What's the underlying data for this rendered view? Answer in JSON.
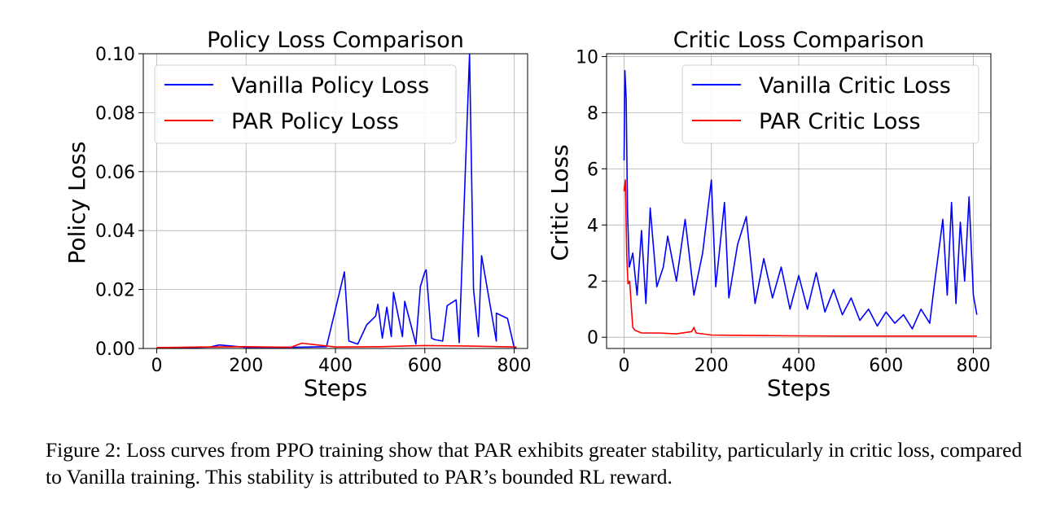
{
  "chart_data": [
    {
      "type": "line",
      "title": "Policy Loss Comparison",
      "xlabel": "Steps",
      "ylabel": "Policy Loss",
      "xlim": [
        -30,
        830
      ],
      "ylim": [
        0,
        0.1
      ],
      "xticks": [
        0,
        200,
        400,
        600,
        800
      ],
      "xtick_labels": [
        "0",
        "200",
        "400",
        "600",
        "800"
      ],
      "yticks": [
        0,
        0.02,
        0.04,
        0.06,
        0.08,
        0.1
      ],
      "ytick_labels": [
        "0.00",
        "0.02",
        "0.04",
        "0.06",
        "0.08",
        "0.10"
      ],
      "grid": true,
      "legend_position": "top-left",
      "series": [
        {
          "name": "Vanilla Policy Loss",
          "color": "#0000ff",
          "points": [
            [
              0,
              0.0002
            ],
            [
              60,
              0.0003
            ],
            [
              120,
              0.0005
            ],
            [
              140,
              0.0012
            ],
            [
              200,
              0.0004
            ],
            [
              300,
              0.0004
            ],
            [
              380,
              0.0006
            ],
            [
              420,
              0.026
            ],
            [
              430,
              0.0025
            ],
            [
              450,
              0.0015
            ],
            [
              470,
              0.008
            ],
            [
              490,
              0.011
            ],
            [
              495,
              0.015
            ],
            [
              505,
              0.0035
            ],
            [
              515,
              0.014
            ],
            [
              525,
              0.004
            ],
            [
              530,
              0.019
            ],
            [
              550,
              0.004
            ],
            [
              555,
              0.016
            ],
            [
              580,
              0.0015
            ],
            [
              590,
              0.021
            ],
            [
              600,
              0.026
            ],
            [
              603,
              0.0267
            ],
            [
              615,
              0.0035
            ],
            [
              622,
              0.003
            ],
            [
              640,
              0.0025
            ],
            [
              650,
              0.0145
            ],
            [
              670,
              0.0165
            ],
            [
              677,
              0.002
            ],
            [
              700,
              0.1
            ],
            [
              709,
              0.02
            ],
            [
              720,
              0.004
            ],
            [
              727,
              0.0315
            ],
            [
              760,
              0.0025
            ],
            [
              760,
              0.012
            ],
            [
              785,
              0.0102
            ],
            [
              800,
              0.0004
            ],
            [
              805,
              0.0002
            ]
          ]
        },
        {
          "name": "PAR Policy Loss",
          "color": "#ff0000",
          "points": [
            [
              0,
              0.0003
            ],
            [
              100,
              0.0005
            ],
            [
              200,
              0.0006
            ],
            [
              300,
              0.0004
            ],
            [
              325,
              0.0018
            ],
            [
              400,
              0.0005
            ],
            [
              500,
              0.0006
            ],
            [
              600,
              0.001
            ],
            [
              700,
              0.0008
            ],
            [
              805,
              0.0005
            ]
          ]
        }
      ]
    },
    {
      "type": "line",
      "title": "Critic Loss Comparison",
      "xlabel": "Steps",
      "ylabel": "Critic Loss",
      "xlim": [
        -40,
        840
      ],
      "ylim": [
        -0.4,
        10.1
      ],
      "xticks": [
        0,
        200,
        400,
        600,
        800
      ],
      "xtick_labels": [
        "0",
        "200",
        "400",
        "600",
        "800"
      ],
      "yticks": [
        0,
        2,
        4,
        6,
        8,
        10
      ],
      "ytick_labels": [
        "0",
        "2",
        "4",
        "6",
        "8",
        "10"
      ],
      "grid": true,
      "legend_position": "top-right",
      "series": [
        {
          "name": "Vanilla Critic Loss",
          "color": "#0000ff",
          "points": [
            [
              0,
              6.3
            ],
            [
              2,
              9.5
            ],
            [
              5,
              8.5
            ],
            [
              8,
              4.5
            ],
            [
              12,
              2.5
            ],
            [
              20,
              3.0
            ],
            [
              30,
              1.5
            ],
            [
              40,
              3.8
            ],
            [
              50,
              1.2
            ],
            [
              60,
              4.6
            ],
            [
              75,
              1.8
            ],
            [
              90,
              2.5
            ],
            [
              100,
              3.6
            ],
            [
              120,
              2.0
            ],
            [
              140,
              4.2
            ],
            [
              160,
              1.5
            ],
            [
              180,
              3.0
            ],
            [
              200,
              5.6
            ],
            [
              210,
              1.8
            ],
            [
              230,
              4.8
            ],
            [
              240,
              1.4
            ],
            [
              260,
              3.3
            ],
            [
              280,
              4.3
            ],
            [
              300,
              1.2
            ],
            [
              320,
              2.8
            ],
            [
              340,
              1.4
            ],
            [
              360,
              2.5
            ],
            [
              380,
              1.0
            ],
            [
              400,
              2.2
            ],
            [
              420,
              1.0
            ],
            [
              440,
              2.3
            ],
            [
              460,
              0.9
            ],
            [
              480,
              1.7
            ],
            [
              500,
              0.8
            ],
            [
              520,
              1.4
            ],
            [
              540,
              0.6
            ],
            [
              560,
              1.0
            ],
            [
              580,
              0.4
            ],
            [
              600,
              0.9
            ],
            [
              620,
              0.5
            ],
            [
              640,
              0.8
            ],
            [
              660,
              0.3
            ],
            [
              680,
              1.0
            ],
            [
              700,
              0.5
            ],
            [
              710,
              1.8
            ],
            [
              730,
              4.2
            ],
            [
              740,
              1.5
            ],
            [
              750,
              4.8
            ],
            [
              760,
              1.2
            ],
            [
              770,
              4.1
            ],
            [
              780,
              2.0
            ],
            [
              790,
              5.0
            ],
            [
              800,
              1.5
            ],
            [
              808,
              0.8
            ]
          ]
        },
        {
          "name": "PAR Critic Loss",
          "color": "#ff0000",
          "points": [
            [
              0,
              5.2
            ],
            [
              3,
              5.6
            ],
            [
              6,
              3.0
            ],
            [
              9,
              1.9
            ],
            [
              13,
              2.0
            ],
            [
              17,
              1.0
            ],
            [
              20,
              0.35
            ],
            [
              25,
              0.25
            ],
            [
              40,
              0.15
            ],
            [
              80,
              0.15
            ],
            [
              120,
              0.12
            ],
            [
              155,
              0.2
            ],
            [
              160,
              0.35
            ],
            [
              165,
              0.15
            ],
            [
              200,
              0.08
            ],
            [
              300,
              0.06
            ],
            [
              400,
              0.05
            ],
            [
              500,
              0.04
            ],
            [
              600,
              0.04
            ],
            [
              700,
              0.04
            ],
            [
              808,
              0.04
            ]
          ]
        }
      ]
    }
  ],
  "caption": "Figure 2: Loss curves from PPO training show that PAR exhibits greater stability, particularly in critic loss, compared to Vanilla training. This stability is attributed to PAR’s bounded RL reward."
}
